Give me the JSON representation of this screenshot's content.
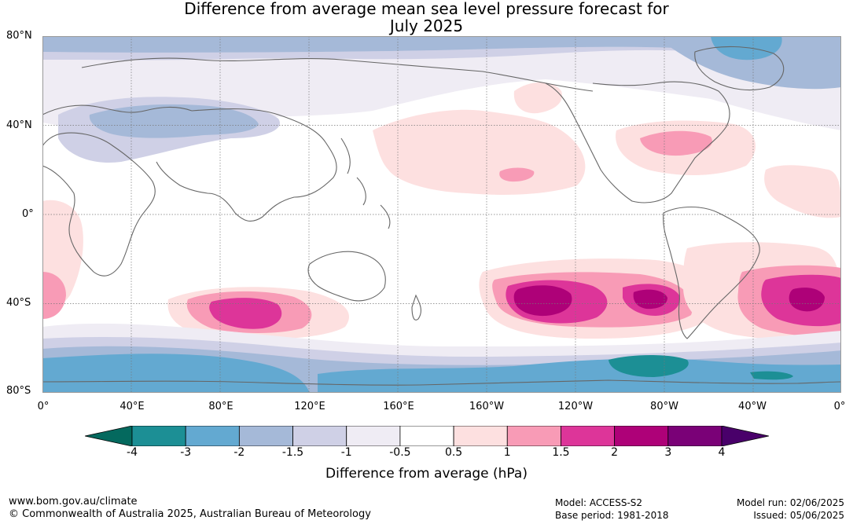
{
  "title": {
    "line1": "Difference from average mean sea level pressure forecast for",
    "line2": "July 2025"
  },
  "lat_labels": [
    "80°N",
    "40°N",
    "0°",
    "40°S",
    "80°S"
  ],
  "lon_labels": [
    "0°",
    "40°E",
    "80°E",
    "120°E",
    "160°E",
    "160°W",
    "120°W",
    "80°W",
    "40°W",
    "0°"
  ],
  "colorbar": {
    "ticks": [
      "-4",
      "-3",
      "-2",
      "-1.5",
      "-1",
      "-0.5",
      "0.5",
      "1",
      "1.5",
      "2",
      "3",
      "4"
    ],
    "colors": [
      "#04695e",
      "#1c8f95",
      "#63a9d1",
      "#a5b9d8",
      "#cfd0e6",
      "#efecf4",
      "#ffffff",
      "#fde0e0",
      "#f89bb6",
      "#dd3599",
      "#ae0178",
      "#7a0177",
      "#49006a"
    ],
    "label": "Difference from average (hPa)"
  },
  "footer": {
    "website": "www.bom.gov.au/climate",
    "copyright": "© Commonwealth of Australia 2025, Australian Bureau of Meteorology",
    "model": "Model: ACCESS-S2",
    "base_period": "Base period: 1981-2018",
    "model_run": "Model run: 02/06/2025",
    "issued": "Issued: 05/06/2025"
  }
}
